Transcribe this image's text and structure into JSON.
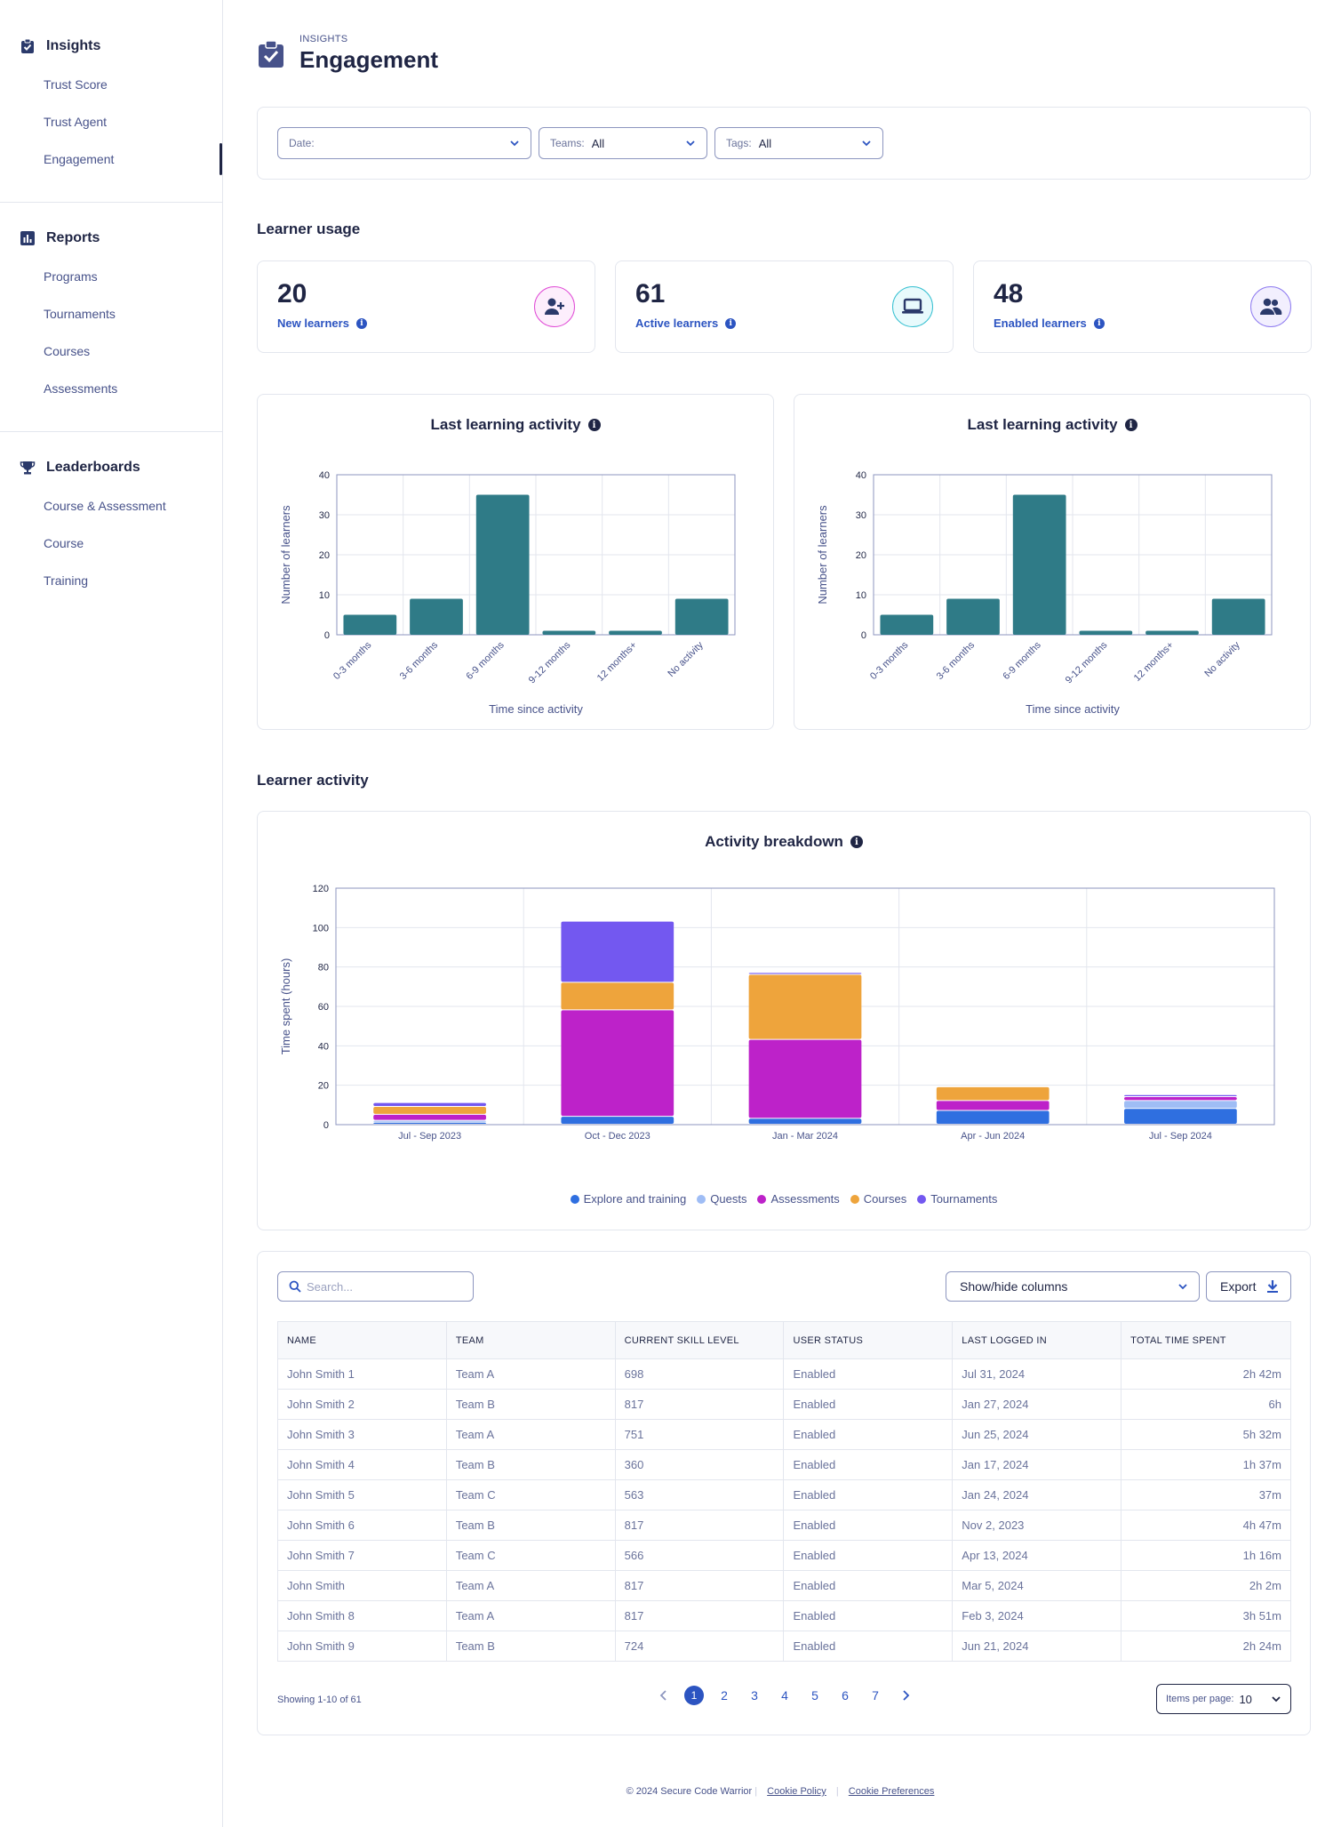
{
  "sidebar": {
    "groups": [
      {
        "title": "Insights",
        "icon": "clipboard-check-icon",
        "items": [
          "Trust Score",
          "Trust Agent",
          "Engagement"
        ],
        "active": "Engagement"
      },
      {
        "title": "Reports",
        "icon": "bar-chart-icon",
        "items": [
          "Programs",
          "Tournaments",
          "Courses",
          "Assessments"
        ]
      },
      {
        "title": "Leaderboards",
        "icon": "trophy-icon",
        "items": [
          "Course & Assessment",
          "Course",
          "Training"
        ]
      }
    ]
  },
  "header": {
    "eyebrow": "INSIGHTS",
    "title": "Engagement",
    "icon": "clipboard-check-icon"
  },
  "filters": {
    "date_label": "Date:",
    "date_value": "",
    "teams_label": "Teams:",
    "teams_value": "All",
    "tags_label": "Tags:",
    "tags_value": "All"
  },
  "learner_usage": {
    "title": "Learner usage",
    "stats": [
      {
        "value": "20",
        "label": "New learners",
        "icon": "add-user-icon",
        "color": "#e04bd6"
      },
      {
        "value": "61",
        "label": "Active learners",
        "icon": "laptop-icon",
        "color": "#36c0d1"
      },
      {
        "value": "48",
        "label": "Enabled learners",
        "icon": "users-icon",
        "color": "#8f7cf0"
      }
    ]
  },
  "chart_data": [
    {
      "type": "bar",
      "title": "Last learning activity",
      "categories": [
        "0-3 months",
        "3-6 months",
        "6-9 months",
        "9-12 months",
        "12 months+",
        "No activity"
      ],
      "values": [
        5,
        9,
        35,
        1,
        1,
        9
      ],
      "xlabel": "Time since activity",
      "ylabel": "Number of learners",
      "ylim": [
        0,
        40
      ],
      "yticks": [
        0,
        10,
        20,
        30,
        40
      ],
      "grid": true,
      "color": "#2f7b87"
    },
    {
      "type": "bar",
      "title": "Last learning activity",
      "categories": [
        "0-3 months",
        "3-6 months",
        "6-9 months",
        "9-12 months",
        "12 months+",
        "No activity"
      ],
      "values": [
        5,
        9,
        35,
        1,
        1,
        9
      ],
      "xlabel": "Time since activity",
      "ylabel": "Number of learners",
      "ylim": [
        0,
        40
      ],
      "yticks": [
        0,
        10,
        20,
        30,
        40
      ],
      "grid": true,
      "color": "#2f7b87"
    },
    {
      "type": "bar",
      "stacked": true,
      "title": "Activity breakdown",
      "categories": [
        "Jul - Sep 2023",
        "Oct - Dec 2023",
        "Jan - Mar 2024",
        "Apr - Jun 2024",
        "Jul - Sep 2024"
      ],
      "series": [
        {
          "name": "Explore and training",
          "color": "#2f6fe0",
          "values": [
            1,
            4,
            3,
            7,
            8
          ]
        },
        {
          "name": "Quests",
          "color": "#9fbdf5",
          "values": [
            1,
            0,
            0,
            0,
            4
          ]
        },
        {
          "name": "Assessments",
          "color": "#bd22c9",
          "values": [
            3,
            54,
            40,
            5,
            2
          ]
        },
        {
          "name": "Courses",
          "color": "#eea43c",
          "values": [
            4,
            14,
            33,
            7,
            0
          ]
        },
        {
          "name": "Tournaments",
          "color": "#7358f0",
          "values": [
            2,
            31,
            1,
            0,
            1
          ]
        }
      ],
      "xlabel": "",
      "ylabel": "Time spent (hours)",
      "ylim": [
        0,
        120
      ],
      "yticks": [
        0,
        20,
        40,
        60,
        80,
        100,
        120
      ],
      "grid": true,
      "legend": "bottom"
    }
  ],
  "learner_activity": {
    "title": "Learner activity"
  },
  "table": {
    "search_placeholder": "Search...",
    "show_hide": "Show/hide columns",
    "export": "Export",
    "columns": [
      "NAME",
      "TEAM",
      "CURRENT SKILL LEVEL",
      "USER STATUS",
      "LAST LOGGED IN",
      "TOTAL TIME SPENT"
    ],
    "rows": [
      [
        "John Smith 1",
        "Team A",
        "698",
        "Enabled",
        "Jul 31, 2024",
        "2h 42m"
      ],
      [
        "John Smith 2",
        "Team B",
        "817",
        "Enabled",
        "Jan 27, 2024",
        "6h"
      ],
      [
        "John Smith 3",
        "Team A",
        "751",
        "Enabled",
        "Jun 25, 2024",
        "5h 32m"
      ],
      [
        "John Smith 4",
        "Team B",
        "360",
        "Enabled",
        "Jan 17, 2024",
        "1h 37m"
      ],
      [
        "John Smith 5",
        "Team C",
        "563",
        "Enabled",
        "Jan 24, 2024",
        "37m"
      ],
      [
        "John Smith 6",
        "Team B",
        "817",
        "Enabled",
        "Nov 2, 2023",
        "4h 47m"
      ],
      [
        "John Smith 7",
        "Team C",
        "566",
        "Enabled",
        "Apr 13, 2024",
        "1h 16m"
      ],
      [
        "John Smith",
        "Team A",
        "817",
        "Enabled",
        "Mar 5, 2024",
        "2h 2m"
      ],
      [
        "John Smith 8",
        "Team A",
        "817",
        "Enabled",
        "Feb 3, 2024",
        "3h 51m"
      ],
      [
        "John Smith 9",
        "Team B",
        "724",
        "Enabled",
        "Jun 21, 2024",
        "2h 24m"
      ]
    ],
    "showing": "Showing 1-10 of 61",
    "pages": [
      "1",
      "2",
      "3",
      "4",
      "5",
      "6",
      "7"
    ],
    "current_page": "1",
    "items_per_page_label": "Items per page:",
    "items_per_page": "10"
  },
  "footer": {
    "copyright": "© 2024 Secure Code Warrior",
    "cookie_policy": "Cookie Policy",
    "cookie_preferences": "Cookie Preferences"
  },
  "colors": {
    "primary": "#2c54c1",
    "dark": "#1f2544",
    "teal": "#2f7b87"
  }
}
